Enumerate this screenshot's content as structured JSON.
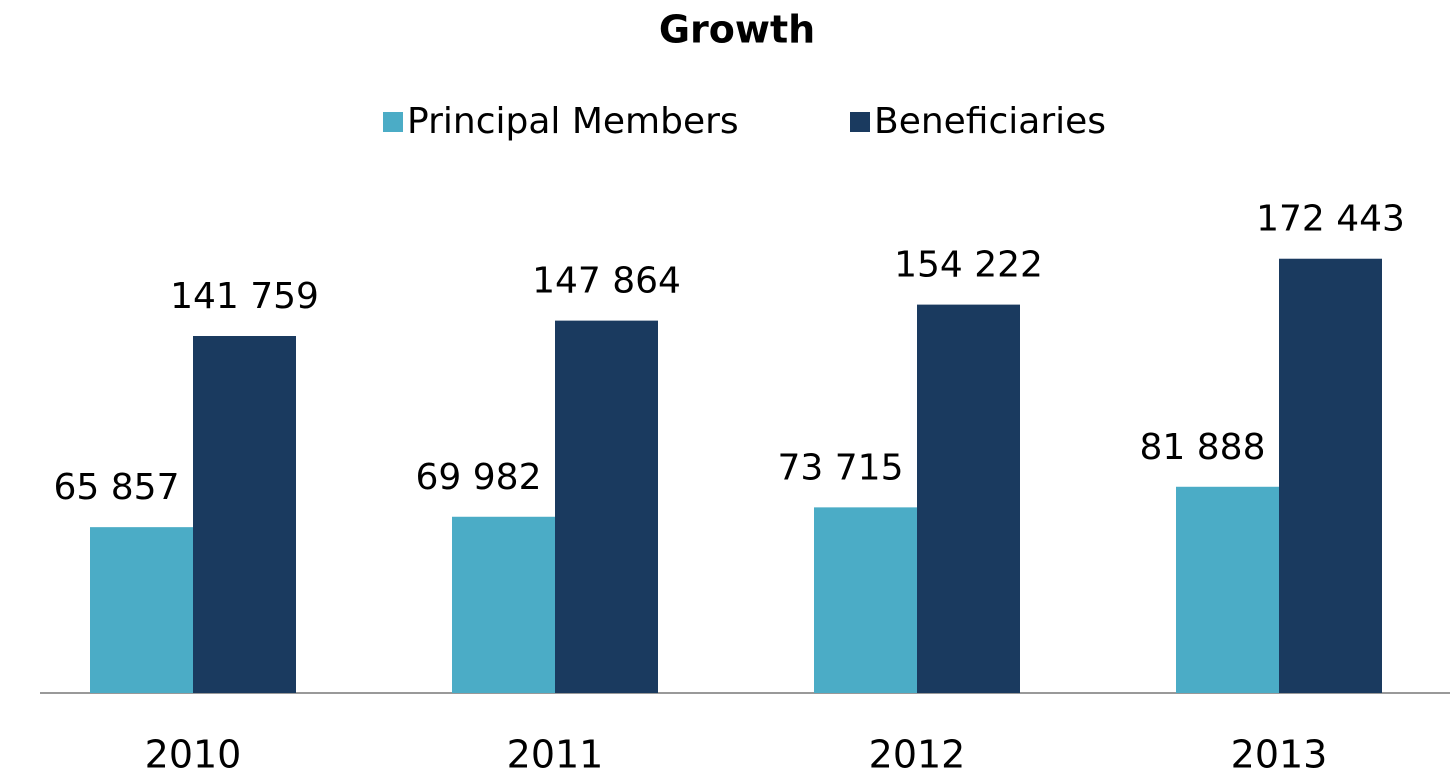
{
  "chart_data": {
    "type": "bar",
    "title": "Growth",
    "categories": [
      "2010",
      "2011",
      "2012",
      "2013"
    ],
    "series": [
      {
        "name": "Principal Members",
        "color": "#4bacc6",
        "values": [
          65857,
          69982,
          73715,
          81888
        ],
        "value_labels": [
          "65 857",
          "69 982",
          "73 715",
          "81 888"
        ]
      },
      {
        "name": "Beneficiaries",
        "color": "#1a3a5f",
        "values": [
          141759,
          147864,
          154222,
          172443
        ],
        "value_labels": [
          "141 759",
          "147 864",
          "154 222",
          "172 443"
        ]
      }
    ],
    "legend": "top"
  }
}
